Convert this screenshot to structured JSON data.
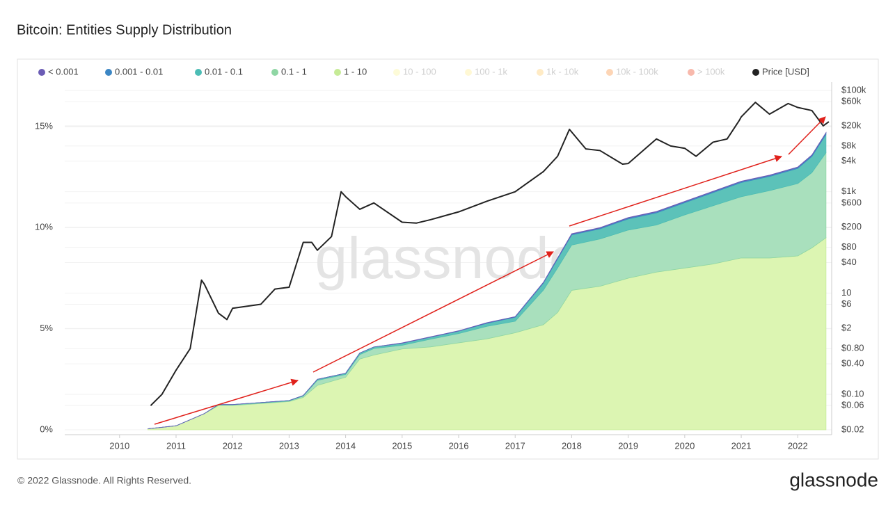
{
  "chart_data": {
    "type": "stacked_area",
    "title": "Bitcoin: Entities Supply Distribution",
    "watermark": "glassnode",
    "footer": "© 2022 Glassnode. All Rights Reserved.",
    "logo": "glassnode",
    "x": [
      2010.5,
      2011,
      2011.5,
      2011.75,
      2012,
      2012.5,
      2013,
      2013.25,
      2013.5,
      2014,
      2014.25,
      2014.5,
      2015,
      2015.5,
      2016,
      2016.5,
      2017,
      2017.5,
      2017.75,
      2018,
      2018.5,
      2019,
      2019.5,
      2020,
      2020.5,
      2021,
      2021.5,
      2022,
      2022.25,
      2022.5
    ],
    "xlim": [
      2009.03,
      2022.6
    ],
    "xticks": [
      2010,
      2011,
      2012,
      2013,
      2014,
      2015,
      2016,
      2017,
      2018,
      2019,
      2020,
      2021,
      2022
    ],
    "ylim": [
      -0.24,
      17.2
    ],
    "yticks": [
      {
        "value": 0,
        "label": "0%"
      },
      {
        "value": 5,
        "label": "5%"
      },
      {
        "value": 10,
        "label": "10%"
      },
      {
        "value": 15,
        "label": "15%"
      }
    ],
    "y2lim": [
      0.016,
      146000
    ],
    "y2scale": "log",
    "y2ticks": [
      {
        "value": 0.02,
        "label": "$0.02"
      },
      {
        "value": 0.06,
        "label": "$0.06"
      },
      {
        "value": 0.1,
        "label": "$0.10"
      },
      {
        "value": 0.4,
        "label": "$0.40"
      },
      {
        "value": 0.8,
        "label": "$0.80"
      },
      {
        "value": 2,
        "label": "$2"
      },
      {
        "value": 6,
        "label": "$6"
      },
      {
        "value": 10,
        "label": "10"
      },
      {
        "value": 40,
        "label": "$40"
      },
      {
        "value": 80,
        "label": "$80"
      },
      {
        "value": 200,
        "label": "$200"
      },
      {
        "value": 600,
        "label": "$600"
      },
      {
        "value": 1000,
        "label": "$1k"
      },
      {
        "value": 4000,
        "label": "$4k"
      },
      {
        "value": 8000,
        "label": "$8k"
      },
      {
        "value": 20000,
        "label": "$20k"
      },
      {
        "value": 60000,
        "label": "$60k"
      },
      {
        "value": 100000,
        "label": "$100k"
      }
    ],
    "grid": true,
    "series": [
      {
        "name": "1 - 10",
        "color": "#c6eb96",
        "fill": "#dcf5b2",
        "values": [
          0.05,
          0.2,
          0.8,
          1.2,
          1.2,
          1.3,
          1.4,
          1.6,
          2.2,
          2.6,
          3.5,
          3.7,
          4.0,
          4.1,
          4.3,
          4.5,
          4.8,
          5.2,
          5.8,
          6.9,
          7.1,
          7.5,
          7.8,
          8.0,
          8.2,
          8.5,
          8.5,
          8.6,
          9.0,
          9.5
        ]
      },
      {
        "name": "0.1 - 1",
        "color": "#8fd6a4",
        "fill": "#a9e0bd",
        "values": [
          0,
          0,
          0,
          0.04,
          0.04,
          0.03,
          0.03,
          0.07,
          0.25,
          0.14,
          0.22,
          0.32,
          0.18,
          0.38,
          0.46,
          0.62,
          0.57,
          1.71,
          2.2,
          2.24,
          2.34,
          2.38,
          2.33,
          2.63,
          2.88,
          3.03,
          3.33,
          3.58,
          3.72,
          4.21
        ]
      },
      {
        "name": "0.01 - 0.1",
        "color": "#4cbdb5",
        "fill": "#5cc2b9",
        "values": [
          0,
          0,
          0,
          0.01,
          0.01,
          0.02,
          0.02,
          0.03,
          0.05,
          0.06,
          0.08,
          0.08,
          0.1,
          0.1,
          0.12,
          0.15,
          0.2,
          0.35,
          0.45,
          0.5,
          0.5,
          0.55,
          0.6,
          0.6,
          0.65,
          0.7,
          0.7,
          0.75,
          0.8,
          0.9
        ]
      },
      {
        "name": "0.001 - 0.01",
        "color": "#3b86c4",
        "fill": "#4a8fc8",
        "values": [
          0,
          0,
          0,
          0,
          0,
          0,
          0,
          0,
          0,
          0,
          0,
          0,
          0.01,
          0.01,
          0.01,
          0.02,
          0.02,
          0.03,
          0.04,
          0.04,
          0.04,
          0.05,
          0.05,
          0.05,
          0.05,
          0.05,
          0.05,
          0.05,
          0.06,
          0.07
        ]
      },
      {
        "name": "< 0.001",
        "color": "#6b5cb5",
        "fill": "#7464b8",
        "values": [
          0,
          0,
          0,
          0,
          0,
          0,
          0,
          0,
          0,
          0,
          0,
          0,
          0.01,
          0.01,
          0.01,
          0.01,
          0.01,
          0.01,
          0.01,
          0.02,
          0.02,
          0.02,
          0.02,
          0.02,
          0.02,
          0.02,
          0.02,
          0.02,
          0.02,
          0.02
        ]
      },
      {
        "name": "10 - 100",
        "color": "#fbf7a8",
        "visible": false
      },
      {
        "name": "100 - 1k",
        "color": "#fff0a0",
        "visible": false
      },
      {
        "name": "1k - 10k",
        "color": "#fed27e",
        "visible": false
      },
      {
        "name": "10k - 100k",
        "color": "#fba15b",
        "visible": false
      },
      {
        "name": "> 100k",
        "color": "#f06448",
        "visible": false
      },
      {
        "name": "Price [USD]",
        "color": "#222222",
        "axis": "y2",
        "type": "line",
        "x": [
          2010.55,
          2010.75,
          2011.0,
          2011.25,
          2011.45,
          2011.5,
          2011.75,
          2011.9,
          2012.0,
          2012.5,
          2012.75,
          2013.0,
          2013.25,
          2013.4,
          2013.5,
          2013.75,
          2013.92,
          2014.0,
          2014.25,
          2014.5,
          2015.0,
          2015.25,
          2015.5,
          2016.0,
          2016.5,
          2017.0,
          2017.5,
          2017.75,
          2017.96,
          2018.25,
          2018.5,
          2018.9,
          2019.0,
          2019.5,
          2019.75,
          2020.0,
          2020.2,
          2020.5,
          2020.75,
          2020.96,
          2021.0,
          2021.25,
          2021.5,
          2021.83,
          2022.0,
          2022.25,
          2022.45,
          2022.55
        ],
        "values": [
          0.06,
          0.1,
          0.3,
          0.8,
          18,
          15,
          4,
          3,
          5,
          6,
          12,
          13,
          100,
          100,
          70,
          130,
          1000,
          800,
          450,
          600,
          250,
          240,
          280,
          400,
          650,
          1000,
          2500,
          5000,
          17000,
          7000,
          6500,
          3500,
          3600,
          11000,
          8000,
          7200,
          5000,
          9500,
          11000,
          25000,
          30000,
          58000,
          34000,
          55000,
          46000,
          40000,
          20000,
          24000
        ]
      }
    ]
  }
}
